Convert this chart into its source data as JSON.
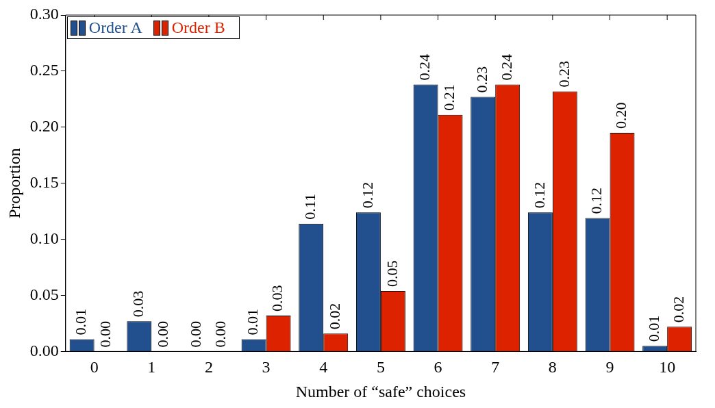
{
  "chart_data": {
    "type": "bar",
    "xlabel": "Number of “safe” choices",
    "ylabel": "Proportion",
    "categories": [
      "0",
      "1",
      "2",
      "3",
      "4",
      "5",
      "6",
      "7",
      "8",
      "9",
      "10"
    ],
    "series": [
      {
        "name": "Order A",
        "color": "#22508f",
        "values": [
          0.011,
          0.027,
          0,
          0.011,
          0.114,
          0.124,
          0.238,
          0.227,
          0.124,
          0.119,
          0.005
        ],
        "value_labels": [
          "0.01",
          "0.03",
          "0.00",
          "0.01",
          "0.11",
          "0.12",
          "0.24",
          "0.23",
          "0.12",
          "0.12",
          "0.01"
        ]
      },
      {
        "name": "Order B",
        "color": "#dd2200",
        "values": [
          0,
          0,
          0,
          0.032,
          0.016,
          0.054,
          0.211,
          0.238,
          0.232,
          0.195,
          0.022
        ],
        "value_labels": [
          "0.00",
          "0.00",
          "0.00",
          "0.03",
          "0.02",
          "0.05",
          "0.21",
          "0.24",
          "0.23",
          "0.20",
          "0.02"
        ]
      }
    ],
    "ylim": [
      0,
      0.3
    ],
    "yticks": [
      {
        "value": 0,
        "label": "0.00"
      },
      {
        "value": 0.05,
        "label": "0.05"
      },
      {
        "value": 0.1,
        "label": "0.10"
      },
      {
        "value": 0.15,
        "label": "0.15"
      },
      {
        "value": 0.2,
        "label": "0.20"
      },
      {
        "value": 0.25,
        "label": "0.25"
      },
      {
        "value": 0.3,
        "label": "0.30"
      }
    ],
    "grid": false,
    "legend": "top left"
  }
}
